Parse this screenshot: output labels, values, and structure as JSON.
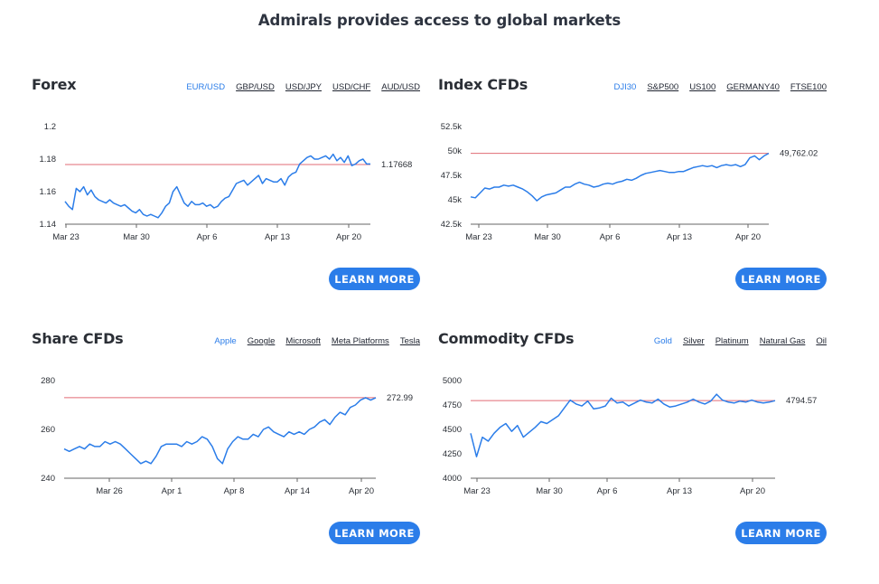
{
  "headline": "Admirals provides access to global markets",
  "accent_color": "#2b7de9",
  "reference_line_color": "#e06b74",
  "panels": [
    {
      "title": "Forex",
      "tabs": [
        "EUR/USD",
        "GBP/USD",
        "USD/JPY",
        "USD/CHF",
        "AUD/USD"
      ],
      "active_tab": "EUR/USD",
      "button": "LEARN MORE"
    },
    {
      "title": "Index CFDs",
      "tabs": [
        "DJI30",
        "S&P500",
        "US100",
        "GERMANY40",
        "FTSE100"
      ],
      "active_tab": "DJI30",
      "button": "LEARN MORE"
    },
    {
      "title": "Share CFDs",
      "tabs": [
        "Apple",
        "Google",
        "Microsoft",
        "Meta Platforms",
        "Tesla"
      ],
      "active_tab": "Apple",
      "button": "LEARN MORE"
    },
    {
      "title": "Commodity CFDs",
      "tabs": [
        "Gold",
        "Silver",
        "Platinum",
        "Natural Gas",
        "Oil"
      ],
      "active_tab": "Gold",
      "button": "LEARN MORE"
    }
  ],
  "chart_data": [
    {
      "type": "line",
      "series": [
        {
          "values": [
            1.154,
            1.151,
            1.149,
            1.162,
            1.16,
            1.163,
            1.158,
            1.161,
            1.157,
            1.155,
            1.154,
            1.153,
            1.155,
            1.153,
            1.152,
            1.151,
            1.152,
            1.15,
            1.148,
            1.147,
            1.149,
            1.146,
            1.145,
            1.146,
            1.145,
            1.144,
            1.147,
            1.151,
            1.153,
            1.16,
            1.163,
            1.158,
            1.153,
            1.151,
            1.154,
            1.152,
            1.152,
            1.153,
            1.151,
            1.152,
            1.15,
            1.151,
            1.154,
            1.156,
            1.157,
            1.161,
            1.165,
            1.166,
            1.167,
            1.164,
            1.166,
            1.168,
            1.17,
            1.165,
            1.168,
            1.167,
            1.166,
            1.166,
            1.168,
            1.164,
            1.169,
            1.171,
            1.172,
            1.177,
            1.179,
            1.181,
            1.182,
            1.18,
            1.18,
            1.181,
            1.182,
            1.18,
            1.183,
            1.179,
            1.181,
            1.178,
            1.182,
            1.176,
            1.177,
            1.179,
            1.18,
            1.177,
            1.177
          ]
        }
      ],
      "x_tick_labels": [
        "Mar 23",
        "Mar 30",
        "Apr 6",
        "Apr 13",
        "Apr 20"
      ],
      "y_tick_labels": [
        "1.14",
        "1.16",
        "1.18",
        "1.2"
      ],
      "ylim": [
        1.14,
        1.2
      ],
      "reference_value": 1.17668,
      "reference_label": "1.17668"
    },
    {
      "type": "line",
      "series": [
        {
          "values": [
            45300,
            45200,
            45700,
            46200,
            46100,
            46300,
            46300,
            46500,
            46400,
            46500,
            46300,
            46100,
            45800,
            45400,
            44900,
            45300,
            45500,
            45600,
            45700,
            46000,
            46300,
            46300,
            46600,
            46800,
            46600,
            46500,
            46300,
            46400,
            46600,
            46700,
            46600,
            46800,
            46900,
            47100,
            47000,
            47200,
            47500,
            47700,
            47800,
            47900,
            48000,
            47900,
            47800,
            47800,
            47900,
            47900,
            48100,
            48300,
            48400,
            48500,
            48400,
            48500,
            48300,
            48500,
            48600,
            48500,
            48600,
            48400,
            48600,
            49300,
            49500,
            49100,
            49500,
            49762
          ]
        }
      ],
      "x_tick_labels": [
        "Mar 23",
        "Mar 30",
        "Apr 6",
        "Apr 13",
        "Apr 20"
      ],
      "y_tick_labels": [
        "42.5k",
        "45k",
        "47.5k",
        "50k",
        "52.5k"
      ],
      "ylim": [
        42500,
        52500
      ],
      "reference_value": 49762.02,
      "reference_label": "49,762.02"
    },
    {
      "type": "line",
      "series": [
        {
          "values": [
            252,
            251,
            252,
            253,
            252,
            254,
            253,
            253,
            255,
            254,
            255,
            254,
            252,
            250,
            248,
            246,
            247,
            246,
            249,
            253,
            254,
            254,
            254,
            253,
            255,
            254,
            255,
            257,
            256,
            253,
            248,
            246,
            252,
            255,
            257,
            256,
            256,
            258,
            257,
            260,
            261,
            259,
            258,
            257,
            259,
            258,
            259,
            258,
            260,
            261,
            263,
            264,
            262,
            265,
            267,
            266,
            269,
            270,
            272,
            273,
            272,
            273
          ]
        }
      ],
      "x_tick_labels": [
        "Mar 26",
        "Apr 1",
        "Apr 8",
        "Apr 14",
        "Apr 20"
      ],
      "y_tick_labels": [
        "240",
        "260",
        "280"
      ],
      "ylim": [
        240,
        280
      ],
      "reference_value": 272.99,
      "reference_label": "272.99"
    },
    {
      "type": "line",
      "series": [
        {
          "values": [
            4460,
            4220,
            4420,
            4380,
            4460,
            4520,
            4560,
            4480,
            4540,
            4420,
            4470,
            4520,
            4580,
            4560,
            4600,
            4640,
            4720,
            4800,
            4760,
            4740,
            4790,
            4710,
            4720,
            4740,
            4820,
            4770,
            4780,
            4740,
            4770,
            4800,
            4780,
            4770,
            4810,
            4760,
            4730,
            4740,
            4760,
            4780,
            4810,
            4780,
            4760,
            4790,
            4860,
            4800,
            4780,
            4770,
            4790,
            4780,
            4800,
            4780,
            4770,
            4780,
            4794
          ]
        }
      ],
      "x_tick_labels": [
        "Mar 23",
        "Mar 30",
        "Apr 6",
        "Apr 13",
        "Apr 20"
      ],
      "y_tick_labels": [
        "4000",
        "4250",
        "4500",
        "4750",
        "5000"
      ],
      "ylim": [
        4000,
        5000
      ],
      "reference_value": 4794.57,
      "reference_label": "4794.57"
    }
  ]
}
